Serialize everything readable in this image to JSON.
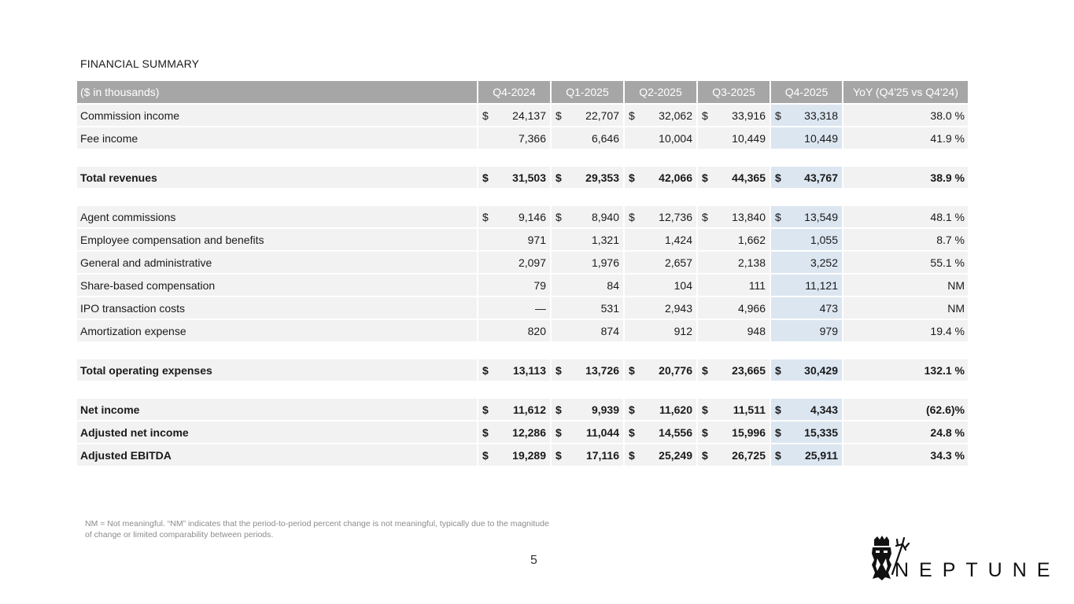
{
  "title": "FINANCIAL SUMMARY",
  "table": {
    "headers": [
      "($ in thousands)",
      "Q4-2024",
      "Q1-2025",
      "Q2-2025",
      "Q3-2025",
      "Q4-2025",
      "YoY (Q4'25 vs Q4'24)"
    ],
    "rows": [
      {
        "label": "Commission income",
        "values": [
          "24,137",
          "22,707",
          "32,062",
          "33,916",
          "33,318"
        ],
        "yoy": "38.0 %",
        "dollar": true,
        "bold": false
      },
      {
        "label": "Fee income",
        "values": [
          "7,366",
          "6,646",
          "10,004",
          "10,449",
          "10,449"
        ],
        "yoy": "41.9 %",
        "dollar": false,
        "bold": false
      },
      {
        "spacer": true
      },
      {
        "label": "Total revenues",
        "values": [
          "31,503",
          "29,353",
          "42,066",
          "44,365",
          "43,767"
        ],
        "yoy": "38.9 %",
        "dollar": true,
        "bold": true
      },
      {
        "spacer": true
      },
      {
        "label": "Agent commissions",
        "values": [
          "9,146",
          "8,940",
          "12,736",
          "13,840",
          "13,549"
        ],
        "yoy": "48.1 %",
        "dollar": true,
        "bold": false
      },
      {
        "label": "Employee compensation and benefits",
        "values": [
          "971",
          "1,321",
          "1,424",
          "1,662",
          "1,055"
        ],
        "yoy": "8.7 %",
        "dollar": false,
        "bold": false
      },
      {
        "label": "General and administrative",
        "values": [
          "2,097",
          "1,976",
          "2,657",
          "2,138",
          "3,252"
        ],
        "yoy": "55.1 %",
        "dollar": false,
        "bold": false
      },
      {
        "label": "Share-based compensation",
        "values": [
          "79",
          "84",
          "104",
          "111",
          "11,121"
        ],
        "yoy": "NM",
        "dollar": false,
        "bold": false
      },
      {
        "label": "IPO transaction costs",
        "values": [
          "—",
          "531",
          "2,943",
          "4,966",
          "473"
        ],
        "yoy": "NM",
        "dollar": false,
        "bold": false
      },
      {
        "label": "Amortization expense",
        "values": [
          "820",
          "874",
          "912",
          "948",
          "979"
        ],
        "yoy": "19.4 %",
        "dollar": false,
        "bold": false
      },
      {
        "spacer": true
      },
      {
        "label": "Total operating expenses",
        "values": [
          "13,113",
          "13,726",
          "20,776",
          "23,665",
          "30,429"
        ],
        "yoy": "132.1 %",
        "dollar": true,
        "bold": true
      },
      {
        "spacer": true
      },
      {
        "label": "Net income",
        "values": [
          "11,612",
          "9,939",
          "11,620",
          "11,511",
          "4,343"
        ],
        "yoy": "(62.6)%",
        "dollar": true,
        "bold": true
      },
      {
        "label": "Adjusted net income",
        "values": [
          "12,286",
          "11,044",
          "14,556",
          "15,996",
          "15,335"
        ],
        "yoy": "24.8 %",
        "dollar": true,
        "bold": true
      },
      {
        "label": "Adjusted EBITDA",
        "values": [
          "19,289",
          "17,116",
          "25,249",
          "26,725",
          "25,911"
        ],
        "yoy": "34.3 %",
        "dollar": true,
        "bold": true
      }
    ]
  },
  "dollar_sign": "$",
  "footnote": "NM = Not meaningful. “NM” indicates that the period-to-period percent change is not meaningful, typically due to the magnitude of change or limited comparability between periods.",
  "page_number": "5",
  "logo": {
    "text": "NEPTUNE",
    "icon": "neptune-head-trident-icon"
  },
  "colors": {
    "header_bg": "#a6a6a6",
    "row_bg": "#f2f2f2",
    "highlight_col": "#dce6f1"
  }
}
